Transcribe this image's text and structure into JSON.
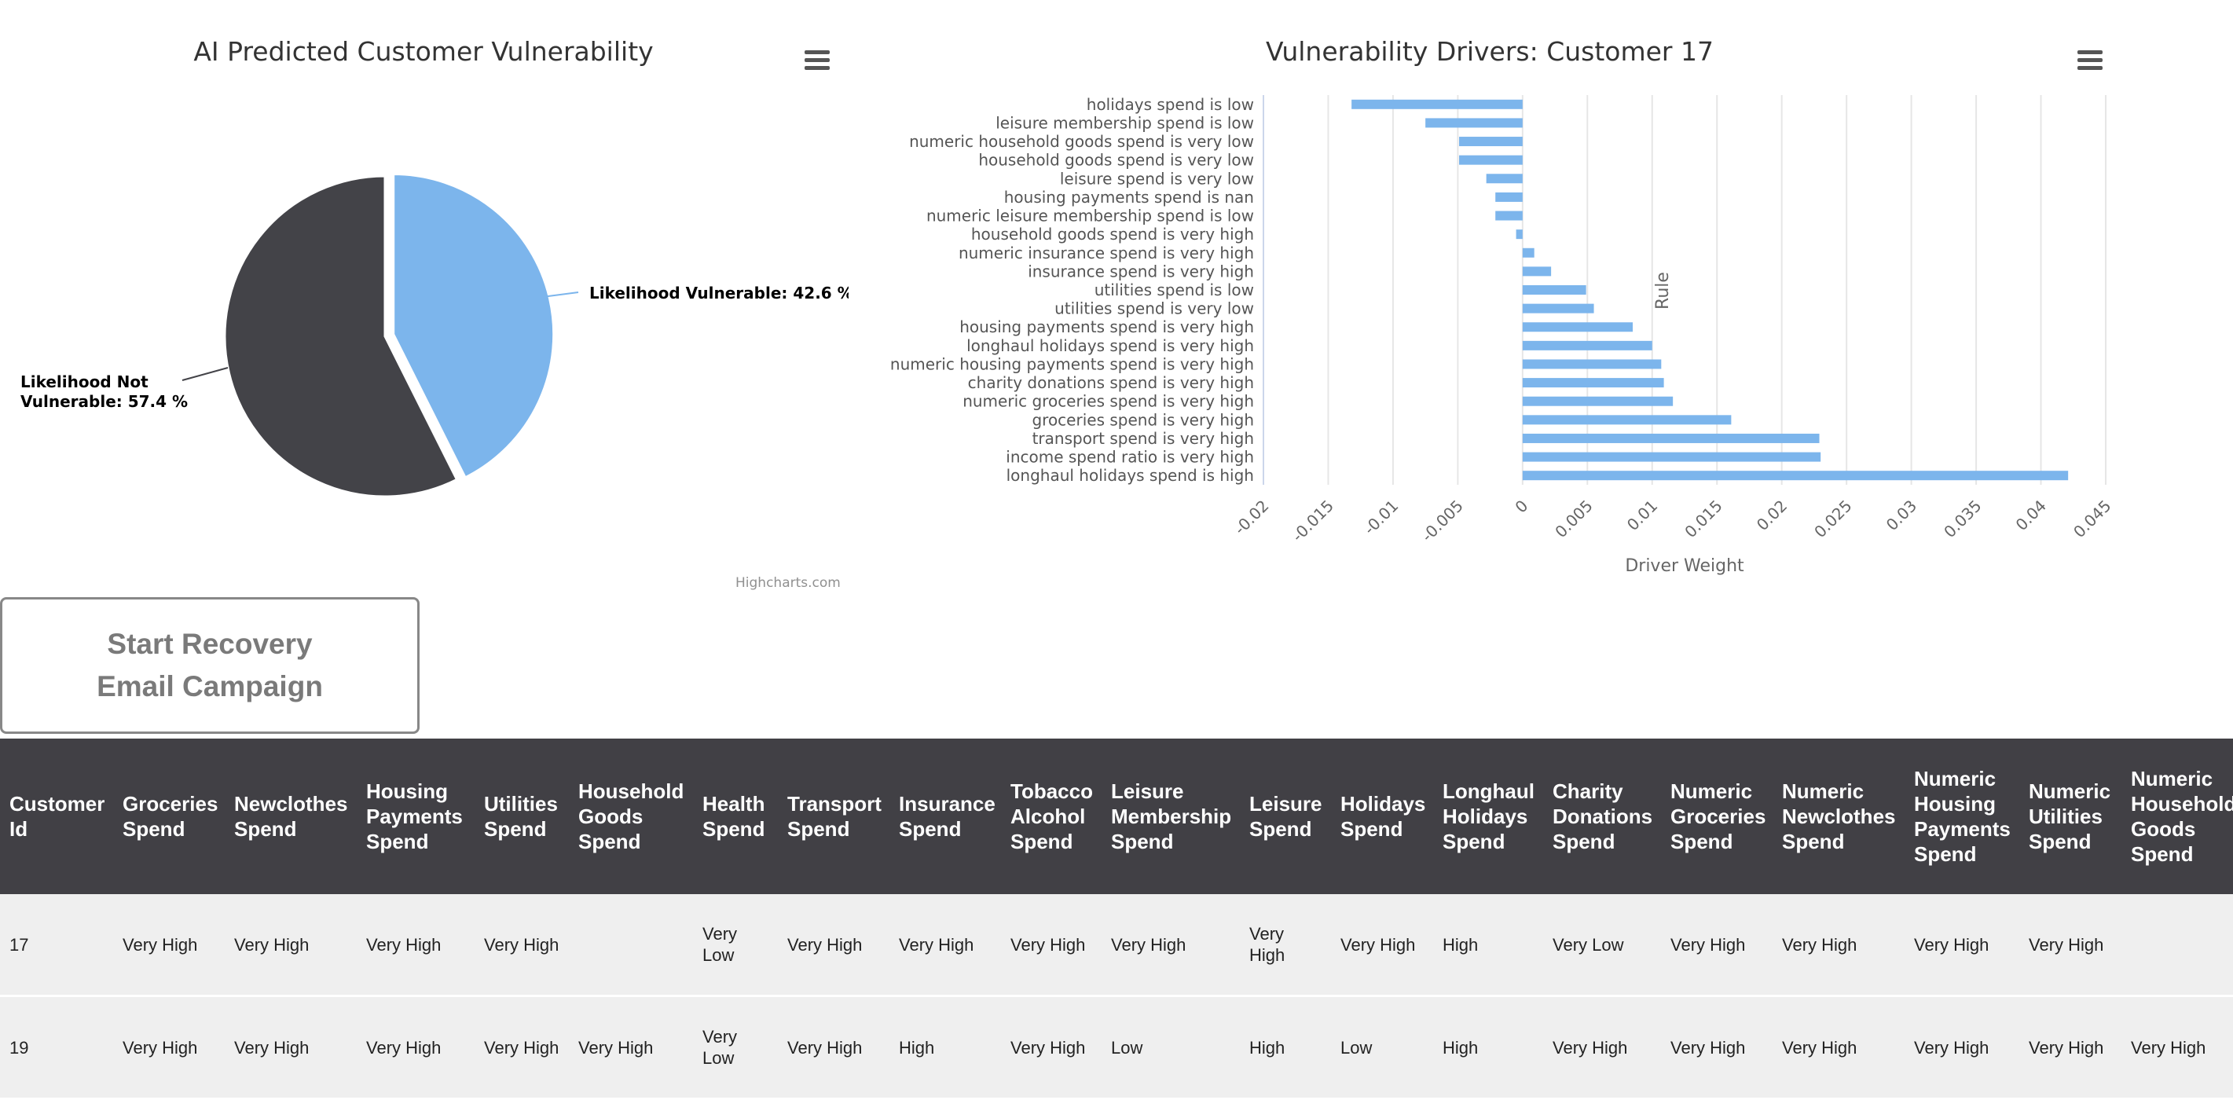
{
  "pie_chart": {
    "title": "AI Predicted Customer Vulnerability",
    "menu_icon": "hamburger-menu-icon",
    "credits": "Highcharts.com",
    "chart_data": {
      "type": "pie",
      "slices": [
        {
          "name": "Likelihood Vulnerable",
          "value": 42.6,
          "color": "#7cb5ec",
          "label_line1": "Likelihood Vulnerable: 42.6 %",
          "label_line2": ""
        },
        {
          "name": "Likelihood Not Vulnerable",
          "value": 57.4,
          "color": "#434348",
          "label_line1": "Likelihood Not",
          "label_line2": "Vulnerable: 57.4 %"
        }
      ]
    }
  },
  "bar_chart": {
    "title": "Vulnerability Drivers: Customer 17",
    "menu_icon": "hamburger-menu-icon",
    "chart_data": {
      "type": "bar",
      "orientation": "horizontal",
      "color": "#7cb5ec",
      "xlabel": "Driver Weight",
      "ylabel": "Rule",
      "xlim": [
        -0.02,
        0.045
      ],
      "x_ticks": [
        "-0.02",
        "-0.015",
        "-0.01",
        "-0.005",
        "0",
        "0.005",
        "0.01",
        "0.015",
        "0.02",
        "0.025",
        "0.03",
        "0.035",
        "0.04",
        "0.045"
      ],
      "grid": true,
      "categories": [
        "holidays spend is low",
        "leisure membership spend is low",
        "numeric household goods spend is very low",
        "household goods spend is very low",
        "leisure spend is very low",
        "housing payments spend is nan",
        "numeric leisure membership spend is low",
        "household goods spend is very high",
        "numeric insurance spend is very high",
        "insurance spend is very high",
        "utilities spend is low",
        "utilities spend is very low",
        "housing payments spend is very high",
        "longhaul holidays spend is very high",
        "numeric housing payments spend is very high",
        "charity donations spend is very high",
        "numeric groceries spend is very high",
        "groceries spend is very high",
        "transport spend is very high",
        "income spend ratio is very high",
        "longhaul holidays spend is high"
      ],
      "values": [
        -0.0132,
        -0.0075,
        -0.0049,
        -0.0049,
        -0.0028,
        -0.0021,
        -0.0021,
        -0.0005,
        0.0009,
        0.0022,
        0.0049,
        0.0055,
        0.0085,
        0.01,
        0.0107,
        0.0109,
        0.0116,
        0.0161,
        0.0229,
        0.023,
        0.0421
      ]
    }
  },
  "recovery_button": {
    "label": "Start Recovery Email Campaign"
  },
  "table": {
    "columns": [
      "Customer Id",
      "Groceries Spend",
      "Newclothes Spend",
      "Housing Payments Spend",
      "Utilities Spend",
      "Household Goods Spend",
      "Health Spend",
      "Transport Spend",
      "Insurance Spend",
      "Tobacco Alcohol Spend",
      "Leisure Membership Spend",
      "Leisure Spend",
      "Holidays Spend",
      "Longhaul Holidays Spend",
      "Charity Donations Spend",
      "Numeric Groceries Spend",
      "Numeric Newclothes Spend",
      "Numeric Housing Payments Spend",
      "Numeric Utilities Spend",
      "Numeric Household Goods Spend"
    ],
    "rows": [
      [
        "17",
        "Very High",
        "Very High",
        "Very High",
        "Very High",
        "",
        "Very Low",
        "Very High",
        "Very High",
        "Very High",
        "Very High",
        "Very High",
        "Very High",
        "High",
        "Very Low",
        "Very High",
        "Very High",
        "Very High",
        "Very High",
        ""
      ],
      [
        "19",
        "Very High",
        "Very High",
        "Very High",
        "Very High",
        "Very High",
        "Very Low",
        "Very High",
        "High",
        "Very High",
        "Low",
        "High",
        "Low",
        "High",
        "Very High",
        "Very High",
        "Very High",
        "Very High",
        "Very High",
        "Very High"
      ]
    ]
  }
}
